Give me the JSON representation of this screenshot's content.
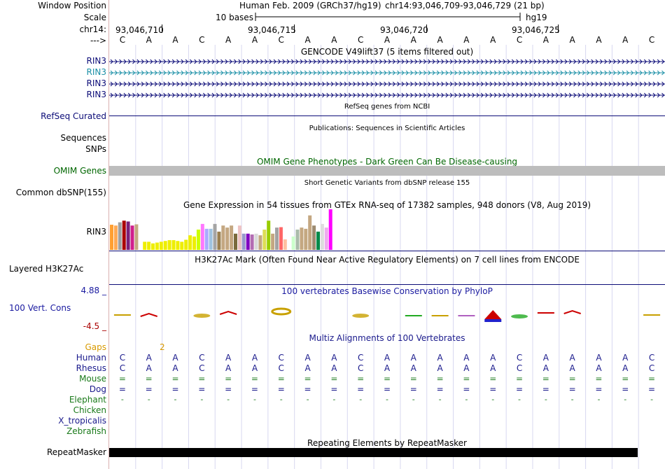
{
  "header": {
    "window_position_label": "Window Position",
    "assembly": "Human Feb. 2009 (GRCh37/hg19)",
    "position": "chr14:93,046,709-93,046,729 (21 bp)",
    "scale_label": "Scale",
    "scale_text": "10 bases",
    "scale_db": "hg19",
    "chrom_label": "chr14:",
    "strand_label": "--->",
    "ticks": [
      "93,046,710",
      "93,046,715",
      "93,046,720",
      "93,046,725"
    ]
  },
  "sequence": [
    "C",
    "A",
    "A",
    "C",
    "A",
    "A",
    "C",
    "A",
    "A",
    "C",
    "A",
    "A",
    "A",
    "A",
    "A",
    "C",
    "A",
    "A",
    "A",
    "A",
    "C"
  ],
  "gencode": {
    "title": "GENCODE V49lift37 (5 items filtered out)",
    "transcripts": [
      {
        "name": "RIN3",
        "color": "#0c0c78"
      },
      {
        "name": "RIN3",
        "color": "#1a8fa6"
      },
      {
        "name": "RIN3",
        "color": "#0c0c78"
      },
      {
        "name": "RIN3",
        "color": "#0c0c78"
      }
    ]
  },
  "refseq": {
    "label": "RefSeq Curated",
    "title": "RefSeq genes from NCBI"
  },
  "publications": {
    "label_top": "Sequences",
    "label_bottom": "SNPs",
    "title": "Publications: Sequences in Scientific Articles"
  },
  "omim": {
    "label": "OMIM Genes",
    "title": "OMIM Gene Phenotypes - Dark Green Can Be Disease-causing",
    "color": "#006600"
  },
  "dbsnp": {
    "label": "Common dbSNP(155)",
    "title": "Short Genetic Variants from dbSNP release 155"
  },
  "gtex": {
    "label": "RIN3",
    "title": "Gene Expression in 54 tissues from GTEx RNA-seq of 17382 samples, 948 donors (V8, Aug 2019)",
    "bars": [
      {
        "v": 0.62,
        "c": "#ff9f31"
      },
      {
        "v": 0.6,
        "c": "#ffa953"
      },
      {
        "v": 0.68,
        "c": "#9fa0a0"
      },
      {
        "v": 0.72,
        "c": "#aa0000"
      },
      {
        "v": 0.7,
        "c": "#7a1f7a"
      },
      {
        "v": 0.6,
        "c": "#d01e8c"
      },
      {
        "v": 0.63,
        "c": "#c4a781"
      },
      {
        "v": 0.0,
        "c": "#ffffff"
      },
      {
        "v": 0.2,
        "c": "#eeee00"
      },
      {
        "v": 0.2,
        "c": "#eeee00"
      },
      {
        "v": 0.16,
        "c": "#eeee00"
      },
      {
        "v": 0.18,
        "c": "#eeee00"
      },
      {
        "v": 0.2,
        "c": "#eeee00"
      },
      {
        "v": 0.22,
        "c": "#eeee00"
      },
      {
        "v": 0.24,
        "c": "#eeee00"
      },
      {
        "v": 0.24,
        "c": "#eeee00"
      },
      {
        "v": 0.22,
        "c": "#eeee00"
      },
      {
        "v": 0.2,
        "c": "#eeee00"
      },
      {
        "v": 0.25,
        "c": "#eeee00"
      },
      {
        "v": 0.36,
        "c": "#eeee00"
      },
      {
        "v": 0.33,
        "c": "#eeee00"
      },
      {
        "v": 0.5,
        "c": "#ccff00"
      },
      {
        "v": 0.64,
        "c": "#ff77ff"
      },
      {
        "v": 0.52,
        "c": "#aaaaff"
      },
      {
        "v": 0.52,
        "c": "#9fc3e0"
      },
      {
        "v": 0.64,
        "c": "#a4a4a4"
      },
      {
        "v": 0.45,
        "c": "#9a7f4f"
      },
      {
        "v": 0.6,
        "c": "#c4a781"
      },
      {
        "v": 0.55,
        "c": "#c4a781"
      },
      {
        "v": 0.6,
        "c": "#c4a781"
      },
      {
        "v": 0.4,
        "c": "#7a6a3c"
      },
      {
        "v": 0.6,
        "c": "#eec3c3"
      },
      {
        "v": 0.4,
        "c": "#9999cc"
      },
      {
        "v": 0.4,
        "c": "#7f00c0"
      },
      {
        "v": 0.38,
        "c": "#b36cb3"
      },
      {
        "v": 0.4,
        "c": "#d9d9d9"
      },
      {
        "v": 0.36,
        "c": "#c4a781"
      },
      {
        "v": 0.5,
        "c": "#dddd55"
      },
      {
        "v": 0.72,
        "c": "#99cc00"
      },
      {
        "v": 0.4,
        "c": "#c4a781"
      },
      {
        "v": 0.55,
        "c": "#a3a3a3"
      },
      {
        "v": 0.56,
        "c": "#ff6666"
      },
      {
        "v": 0.26,
        "c": "#ffc0a0"
      },
      {
        "v": 0.0,
        "c": "#ffffff"
      },
      {
        "v": 0.33,
        "c": "#ccffcc"
      },
      {
        "v": 0.5,
        "c": "#aabbaa"
      },
      {
        "v": 0.55,
        "c": "#c4a781"
      },
      {
        "v": 0.52,
        "c": "#c4a781"
      },
      {
        "v": 0.85,
        "c": "#c4a781"
      },
      {
        "v": 0.6,
        "c": "#9c8b70"
      },
      {
        "v": 0.45,
        "c": "#008a4a"
      },
      {
        "v": 0.64,
        "c": "#dddddd"
      },
      {
        "v": 0.55,
        "c": "#eeaaee"
      },
      {
        "v": 1.0,
        "c": "#ff00ff"
      }
    ]
  },
  "h3k27ac": {
    "label": "Layered H3K27Ac",
    "title": "H3K27Ac Mark (Often Found Near Active Regulatory Elements) on 7 cell lines from ENCODE"
  },
  "conservation": {
    "label": "100 Vert. Cons",
    "max_label": "4.88 _",
    "min_label": "-4.5 _",
    "title": "100 vertebrates Basewise Conservation by PhyloP",
    "label_color": "#1a1aa0",
    "min_color": "#aa0000"
  },
  "multiz": {
    "title": "Multiz Alignments of 100 Vertebrates",
    "gaps_label": "Gaps",
    "gap_marker": "2",
    "species": [
      {
        "name": "Human",
        "color": "#1a1a8c",
        "row": "CAACAACAACAAAAACAAAAC"
      },
      {
        "name": "Rhesus",
        "color": "#1a1a8c",
        "row": "CAACAACAACAAAAACAAAAC"
      },
      {
        "name": "Mouse",
        "color": "#1a7a1a",
        "row": "====================="
      },
      {
        "name": "Dog",
        "color": "#1a1a8c",
        "row": "====================="
      },
      {
        "name": "Elephant",
        "color": "#1a7a1a",
        "row": "---------------------"
      },
      {
        "name": "Chicken",
        "color": "#1a7a1a",
        "row": ""
      },
      {
        "name": "X_tropicalis",
        "color": "#1a1a8c",
        "row": ""
      },
      {
        "name": "Zebrafish",
        "color": "#1a7a1a",
        "row": ""
      }
    ]
  },
  "repeatmasker": {
    "label": "RepeatMasker",
    "title": "Repeating Elements by RepeatMasker"
  },
  "colors": {
    "dark_blue": "#0c0c78",
    "gaps_orange": "#d99a00",
    "omim_gray": "#bdbdbd",
    "grid": "#d8d8f0"
  }
}
